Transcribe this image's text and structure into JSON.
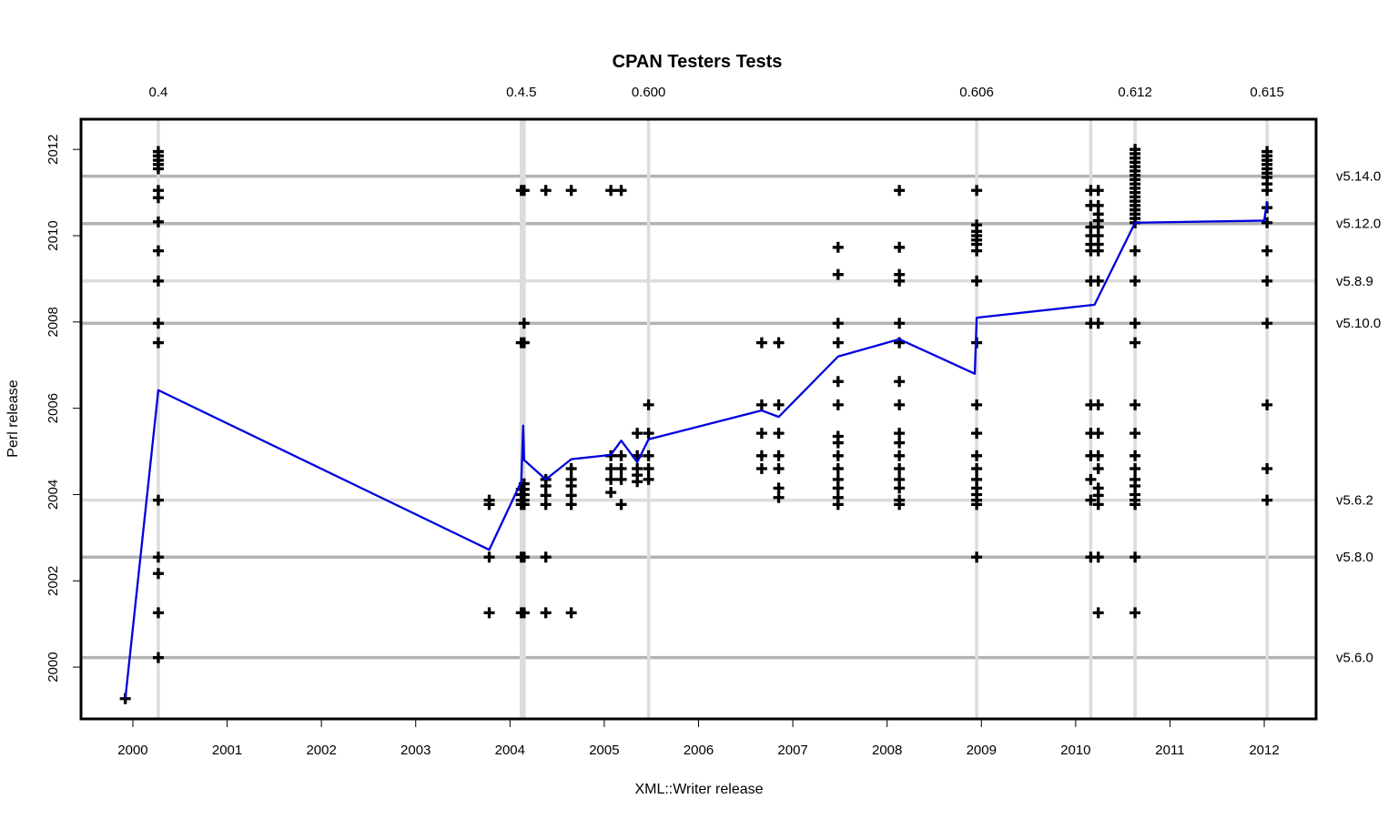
{
  "chart_data": {
    "type": "scatter",
    "title": "CPAN Testers Tests",
    "xlabel": "XML::Writer release",
    "ylabel": "Perl release",
    "xlim": [
      1999.45,
      2012.55
    ],
    "ylim": [
      1998.8,
      2012.7
    ],
    "x_ticks": [
      "2000",
      "2001",
      "2002",
      "2003",
      "2004",
      "2005",
      "2006",
      "2007",
      "2008",
      "2009",
      "2010",
      "2011",
      "2012"
    ],
    "y_ticks": [
      "2000",
      "2002",
      "2004",
      "2006",
      "2008",
      "2010",
      "2012"
    ],
    "grid": false,
    "colors": {
      "points": "#000000",
      "median_line": "#0000dd",
      "reference_dark": "#b3b3b3",
      "reference_light": "#dcdcdc",
      "label_muted": "#aaaaaa"
    },
    "xml_writer_releases": [
      {
        "label": "0.4",
        "x": 2000.27
      },
      {
        "label": "",
        "x": 2004.15
      },
      {
        "label": "0.4.5",
        "x": 2004.12
      },
      {
        "label": "0.600",
        "x": 2005.47
      },
      {
        "label": "0.606",
        "x": 2008.95
      },
      {
        "label": "",
        "x": 2010.16
      },
      {
        "label": "0.612",
        "x": 2010.63
      },
      {
        "label": "0.615",
        "x": 2012.03
      }
    ],
    "perl_releases": [
      {
        "label": "v5.14.0",
        "y": 2011.38,
        "style": "dark"
      },
      {
        "label": "v5.12.0",
        "y": 2010.28,
        "style": "dark"
      },
      {
        "label": "v5.8.9",
        "y": 2008.95,
        "style": "light"
      },
      {
        "label": "v5.10.0",
        "y": 2007.97,
        "style": "dark"
      },
      {
        "label": "v5.6.2",
        "y": 2003.87,
        "style": "light"
      },
      {
        "label": "v5.8.0",
        "y": 2002.55,
        "style": "dark"
      },
      {
        "label": "v5.6.0",
        "y": 2000.22,
        "style": "dark"
      }
    ],
    "points": [
      {
        "x": 1999.92,
        "y": [
          1999.27
        ]
      },
      {
        "x": 2000.27,
        "y": [
          2000.22,
          2001.26,
          2002.17,
          2002.55,
          2003.87,
          2007.52,
          2007.97,
          2008.95,
          2009.65,
          2010.32,
          2010.88,
          2011.05,
          2011.55,
          2011.65,
          2011.75,
          2011.85,
          2011.95
        ]
      },
      {
        "x": 2003.78,
        "y": [
          2001.26,
          2002.55,
          2003.77,
          2003.87
        ]
      },
      {
        "x": 2004.12,
        "y": [
          2001.26,
          2002.55,
          2003.77,
          2003.87,
          2004.0,
          2004.12,
          2007.52,
          2011.05
        ]
      },
      {
        "x": 2004.15,
        "y": [
          2001.26,
          2002.55,
          2003.77,
          2003.87,
          2004.0,
          2004.12,
          2004.25,
          2007.52,
          2007.97,
          2011.05
        ]
      },
      {
        "x": 2004.38,
        "y": [
          2001.26,
          2002.55,
          2003.77,
          2003.98,
          2004.2,
          2004.35,
          2011.05
        ]
      },
      {
        "x": 2004.65,
        "y": [
          2001.26,
          2003.77,
          2003.98,
          2004.2,
          2004.35,
          2004.6,
          2011.05
        ]
      },
      {
        "x": 2005.07,
        "y": [
          2004.05,
          2004.35,
          2004.6,
          2004.9,
          2011.05
        ]
      },
      {
        "x": 2005.18,
        "y": [
          2003.77,
          2004.35,
          2004.6,
          2004.9,
          2011.05
        ]
      },
      {
        "x": 2005.35,
        "y": [
          2004.3,
          2004.45,
          2004.6,
          2004.9,
          2005.42
        ]
      },
      {
        "x": 2005.47,
        "y": [
          2004.35,
          2004.6,
          2004.9,
          2005.42,
          2006.08
        ]
      },
      {
        "x": 2006.67,
        "y": [
          2004.6,
          2004.9,
          2005.42,
          2006.08,
          2007.52
        ]
      },
      {
        "x": 2006.85,
        "y": [
          2003.93,
          2004.15,
          2004.6,
          2004.9,
          2005.42,
          2006.08,
          2007.52
        ]
      },
      {
        "x": 2007.48,
        "y": [
          2003.77,
          2003.93,
          2004.15,
          2004.35,
          2004.6,
          2004.9,
          2005.2,
          2005.35,
          2006.08,
          2006.62,
          2007.52,
          2007.97,
          2009.1,
          2009.73
        ]
      },
      {
        "x": 2008.13,
        "y": [
          2003.77,
          2003.87,
          2004.15,
          2004.35,
          2004.6,
          2004.9,
          2005.2,
          2005.42,
          2006.08,
          2006.62,
          2007.52,
          2007.97,
          2008.95,
          2009.1,
          2009.73,
          2011.05
        ]
      },
      {
        "x": 2008.95,
        "y": [
          2002.55,
          2003.77,
          2003.87,
          2004.0,
          2004.15,
          2004.35,
          2004.6,
          2004.9,
          2005.42,
          2006.08,
          2007.52,
          2008.95,
          2009.65,
          2009.8,
          2009.9,
          2010.0,
          2010.1,
          2010.25,
          2011.05
        ]
      },
      {
        "x": 2010.16,
        "y": [
          2002.55,
          2003.87,
          2004.35,
          2004.9,
          2005.42,
          2006.08,
          2007.97,
          2008.95,
          2009.65,
          2009.8,
          2010.0,
          2010.2,
          2010.7,
          2011.05
        ]
      },
      {
        "x": 2010.24,
        "y": [
          2001.26,
          2002.55,
          2003.77,
          2003.98,
          2004.15,
          2004.6,
          2004.9,
          2005.42,
          2006.08,
          2007.97,
          2008.95,
          2009.65,
          2009.8,
          2010.0,
          2010.2,
          2010.35,
          2010.5,
          2010.7,
          2011.05
        ]
      },
      {
        "x": 2010.63,
        "y": [
          2001.26,
          2002.55,
          2003.77,
          2003.87,
          2004.0,
          2004.2,
          2004.35,
          2004.6,
          2004.9,
          2005.42,
          2006.08,
          2007.52,
          2007.97,
          2008.95,
          2009.65,
          2010.3,
          2010.4,
          2010.5,
          2010.6,
          2010.7,
          2010.8,
          2010.9,
          2011.0,
          2011.1,
          2011.2,
          2011.3,
          2011.4,
          2011.5,
          2011.6,
          2011.7,
          2011.8,
          2011.9,
          2012.0
        ]
      },
      {
        "x": 2012.03,
        "y": [
          2003.87,
          2004.6,
          2006.08,
          2007.97,
          2008.95,
          2009.65,
          2010.3,
          2010.65,
          2011.05,
          2011.2,
          2011.35,
          2011.45,
          2011.55,
          2011.65,
          2011.75,
          2011.85,
          2011.95
        ]
      }
    ],
    "median_line": {
      "name": "",
      "x": [
        1999.92,
        2000.27,
        2003.78,
        2004.12,
        2004.14,
        2004.15,
        2004.38,
        2004.65,
        2005.07,
        2005.18,
        2005.35,
        2005.47,
        2006.67,
        2006.85,
        2007.48,
        2008.13,
        2008.93,
        2008.95,
        2010.2,
        2010.63,
        2012.0,
        2012.03
      ],
      "y": [
        1999.27,
        2006.42,
        2002.72,
        2004.3,
        2005.6,
        2004.8,
        2004.35,
        2004.82,
        2004.92,
        2005.25,
        2004.75,
        2005.28,
        2005.95,
        2005.8,
        2007.2,
        2007.6,
        2006.8,
        2008.1,
        2008.4,
        2010.3,
        2010.35,
        2010.8
      ]
    }
  }
}
